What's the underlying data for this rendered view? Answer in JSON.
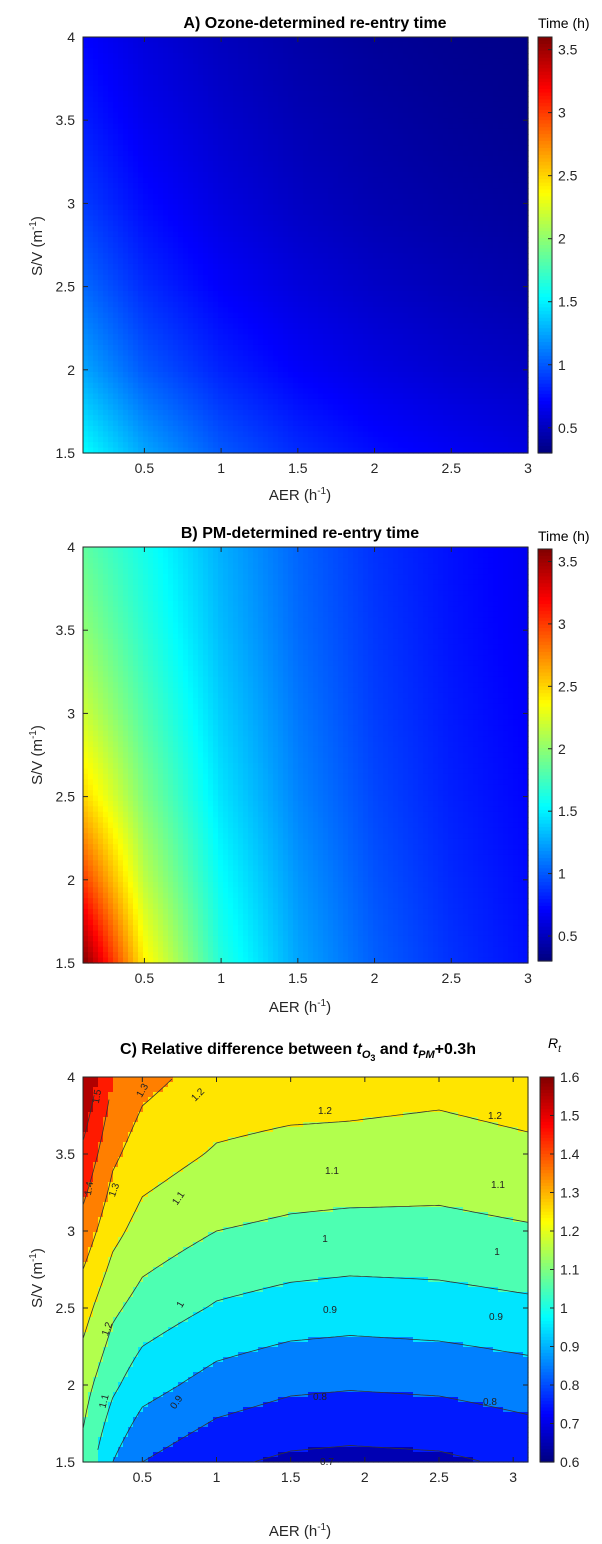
{
  "chart_data": [
    {
      "id": "A",
      "type": "heatmap",
      "title": "A) Ozone-determined re-entry time",
      "xlabel": "AER (h",
      "xlabel_sup": "-1",
      "xlabel_end": ")",
      "ylabel": "S/V (m",
      "ylabel_sup": "-1",
      "ylabel_end": ")",
      "xlim": [
        0.1,
        3
      ],
      "ylim": [
        1.5,
        4
      ],
      "xticks": [
        0.5,
        1,
        1.5,
        2,
        2.5,
        3
      ],
      "yticks": [
        1.5,
        2,
        2.5,
        3,
        3.5,
        4
      ],
      "colorbar": {
        "title": "Time (h)",
        "range": [
          0.3,
          3.6
        ],
        "ticks": [
          0.5,
          1,
          1.5,
          2,
          2.5,
          3,
          3.5
        ],
        "colormap": "jet"
      },
      "value_grid": {
        "x": [
          0.1,
          0.5,
          1,
          1.5,
          2,
          2.5,
          3
        ],
        "y": [
          1.5,
          2,
          2.5,
          3,
          3.5,
          4
        ],
        "z": [
          [
            1.55,
            1.25,
            1.0,
            0.85,
            0.75,
            0.68,
            0.62
          ],
          [
            1.25,
            1.0,
            0.82,
            0.7,
            0.62,
            0.56,
            0.52
          ],
          [
            1.05,
            0.85,
            0.7,
            0.6,
            0.53,
            0.48,
            0.44
          ],
          [
            0.9,
            0.74,
            0.61,
            0.52,
            0.46,
            0.42,
            0.39
          ],
          [
            0.8,
            0.66,
            0.55,
            0.47,
            0.42,
            0.38,
            0.35
          ],
          [
            0.72,
            0.6,
            0.5,
            0.43,
            0.38,
            0.35,
            0.33
          ]
        ]
      }
    },
    {
      "id": "B",
      "type": "heatmap",
      "title": "B) PM-determined re-entry time",
      "xlabel": "AER (h",
      "xlabel_sup": "-1",
      "xlabel_end": ")",
      "ylabel": "S/V (m",
      "ylabel_sup": "-1",
      "ylabel_end": ")",
      "xlim": [
        0.1,
        3
      ],
      "ylim": [
        1.5,
        4
      ],
      "xticks": [
        0.5,
        1,
        1.5,
        2,
        2.5,
        3
      ],
      "yticks": [
        1.5,
        2,
        2.5,
        3,
        3.5,
        4
      ],
      "colorbar": {
        "title": "Time (h)",
        "range": [
          0.3,
          3.6
        ],
        "ticks": [
          0.5,
          1,
          1.5,
          2,
          2.5,
          3,
          3.5
        ],
        "colormap": "jet"
      },
      "value_grid": {
        "x": [
          0.1,
          0.5,
          1,
          1.5,
          2,
          2.5,
          3
        ],
        "y": [
          1.5,
          2,
          2.5,
          3,
          3.5,
          4
        ],
        "z": [
          [
            3.6,
            2.4,
            1.65,
            1.25,
            1.02,
            0.87,
            0.76
          ],
          [
            3.0,
            2.15,
            1.55,
            1.2,
            0.98,
            0.84,
            0.74
          ],
          [
            2.5,
            1.95,
            1.45,
            1.14,
            0.94,
            0.81,
            0.72
          ],
          [
            2.2,
            1.8,
            1.38,
            1.1,
            0.91,
            0.79,
            0.7
          ],
          [
            2.0,
            1.68,
            1.32,
            1.06,
            0.89,
            0.77,
            0.68
          ],
          [
            1.85,
            1.6,
            1.28,
            1.04,
            0.87,
            0.76,
            0.67
          ]
        ]
      }
    },
    {
      "id": "C",
      "type": "heatmap",
      "title_prefix": "C) Relative difference between ",
      "title_t": "t",
      "title_o_sub": "O",
      "title_3_sub": "3",
      "title_and": " and ",
      "title_pm_sub": "PM",
      "title_suffix": "+0.3h",
      "xlabel": "AER (h",
      "xlabel_sup": "-1",
      "xlabel_end": ")",
      "ylabel": "S/V (m",
      "ylabel_sup": "-1",
      "ylabel_end": ")",
      "xlim": [
        0.1,
        3.1
      ],
      "ylim": [
        1.5,
        4
      ],
      "xticks": [
        0.5,
        1,
        1.5,
        2,
        2.5,
        3
      ],
      "yticks": [
        1.5,
        2,
        2.5,
        3,
        3.5,
        4
      ],
      "colorbar": {
        "title": "R",
        "title_sub": "t",
        "range": [
          0.6,
          1.6
        ],
        "ticks": [
          0.6,
          0.7,
          0.8,
          0.9,
          1,
          1.1,
          1.2,
          1.3,
          1.4,
          1.5,
          1.6
        ],
        "colormap": "jet"
      },
      "contour_levels": [
        0.7,
        0.8,
        0.9,
        1,
        1.1,
        1.2,
        1.3,
        1.4,
        1.5
      ],
      "contour_labels": [
        "1.5",
        "1.3",
        "1.2",
        "1.2",
        "1.2",
        "1.1",
        "1.1",
        "1.1",
        "1.4",
        "1.3",
        "1",
        "1",
        "1",
        "1.2",
        "0.9",
        "0.9",
        "1.1",
        "0.9",
        "0.8",
        "0.8",
        "0.7"
      ],
      "value_grid": {
        "x": [
          0.1,
          0.3,
          0.5,
          1,
          1.5,
          1.9,
          2.5,
          3.1
        ],
        "y": [
          1.5,
          2,
          2.5,
          3,
          3.5,
          4
        ],
        "z": [
          [
            1.07,
            0.9,
            0.8,
            0.72,
            0.68,
            0.67,
            0.68,
            0.72
          ],
          [
            1.14,
            1.02,
            0.94,
            0.86,
            0.82,
            0.81,
            0.82,
            0.85
          ],
          [
            1.24,
            1.12,
            1.06,
            0.99,
            0.96,
            0.95,
            0.96,
            0.98
          ],
          [
            1.36,
            1.23,
            1.16,
            1.1,
            1.08,
            1.07,
            1.07,
            1.09
          ],
          [
            1.48,
            1.32,
            1.25,
            1.19,
            1.17,
            1.17,
            1.16,
            1.18
          ],
          [
            1.6,
            1.4,
            1.33,
            1.26,
            1.25,
            1.24,
            1.23,
            1.25
          ]
        ]
      }
    }
  ]
}
